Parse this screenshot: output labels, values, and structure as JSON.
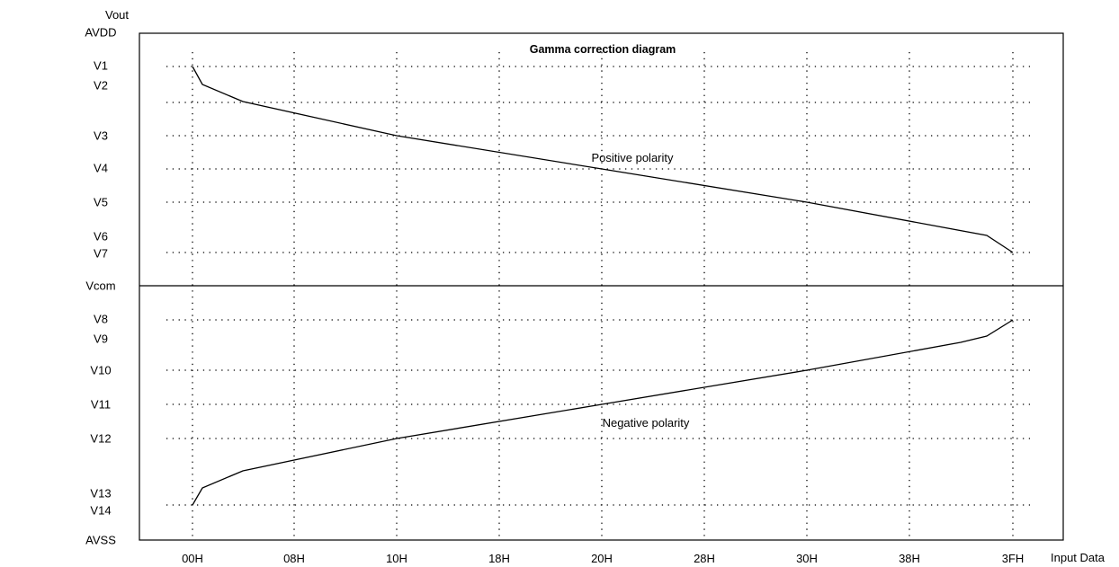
{
  "diagram": {
    "title": "Gamma correction diagram",
    "y_axis_label": "Vout",
    "x_axis_label": "Input Data",
    "y_labels": [
      "AVDD",
      "V1",
      "V2",
      "V3",
      "V4",
      "V5",
      "V6",
      "V7",
      "Vcom",
      "V8",
      "V9",
      "V10",
      "V11",
      "V12",
      "V13",
      "V14",
      "AVSS"
    ],
    "x_labels": [
      "00H",
      "08H",
      "10H",
      "18H",
      "20H",
      "28H",
      "30H",
      "38H",
      "3FH"
    ],
    "curves": [
      {
        "label": "Positive polarity"
      },
      {
        "label": "Negative polarity"
      }
    ]
  }
}
